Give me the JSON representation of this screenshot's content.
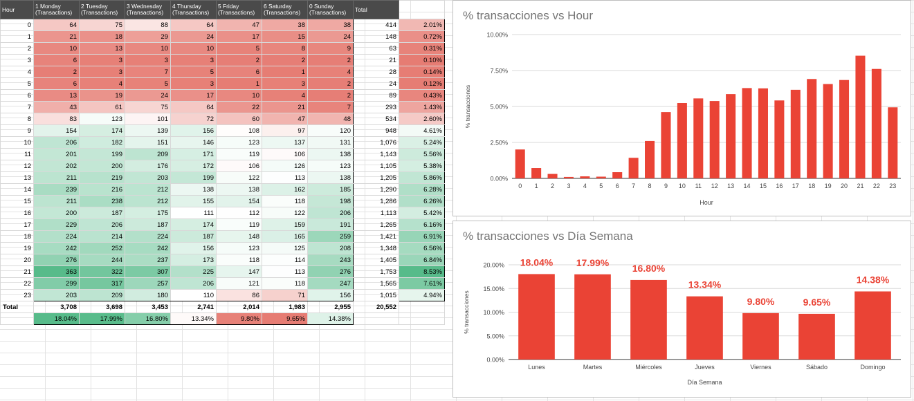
{
  "sheet": {
    "header": [
      "Hour",
      "1 Monday (Transactions)",
      "2 Tuesday (Transactions)",
      "3 Wednesday (Transactions)",
      "4 Thursday (Transactions)",
      "5 Friday (Transactions)",
      "6 Saturday (Transactions)",
      "0 Sunday (Transactions)",
      "Total"
    ],
    "rows": [
      {
        "h": "0",
        "v": [
          "64",
          "75",
          "88",
          "64",
          "47",
          "38",
          "38"
        ],
        "t": "414",
        "p": "2.01%"
      },
      {
        "h": "1",
        "v": [
          "21",
          "18",
          "29",
          "24",
          "17",
          "15",
          "24"
        ],
        "t": "148",
        "p": "0.72%"
      },
      {
        "h": "2",
        "v": [
          "10",
          "13",
          "10",
          "10",
          "5",
          "8",
          "9"
        ],
        "t": "63",
        "p": "0.31%"
      },
      {
        "h": "3",
        "v": [
          "6",
          "3",
          "3",
          "3",
          "2",
          "2",
          "2"
        ],
        "t": "21",
        "p": "0.10%"
      },
      {
        "h": "4",
        "v": [
          "2",
          "3",
          "7",
          "5",
          "6",
          "1",
          "4"
        ],
        "t": "28",
        "p": "0.14%"
      },
      {
        "h": "5",
        "v": [
          "6",
          "4",
          "5",
          "3",
          "1",
          "3",
          "2"
        ],
        "t": "24",
        "p": "0.12%"
      },
      {
        "h": "6",
        "v": [
          "13",
          "19",
          "24",
          "17",
          "10",
          "4",
          "2"
        ],
        "t": "89",
        "p": "0.43%"
      },
      {
        "h": "7",
        "v": [
          "43",
          "61",
          "75",
          "64",
          "22",
          "21",
          "7"
        ],
        "t": "293",
        "p": "1.43%"
      },
      {
        "h": "8",
        "v": [
          "83",
          "123",
          "101",
          "72",
          "60",
          "47",
          "48"
        ],
        "t": "534",
        "p": "2.60%"
      },
      {
        "h": "9",
        "v": [
          "154",
          "174",
          "139",
          "156",
          "108",
          "97",
          "120"
        ],
        "t": "948",
        "p": "4.61%"
      },
      {
        "h": "10",
        "v": [
          "206",
          "182",
          "151",
          "146",
          "123",
          "137",
          "131"
        ],
        "t": "1,076",
        "p": "5.24%"
      },
      {
        "h": "11",
        "v": [
          "201",
          "199",
          "209",
          "171",
          "119",
          "106",
          "138"
        ],
        "t": "1,143",
        "p": "5.56%"
      },
      {
        "h": "12",
        "v": [
          "202",
          "200",
          "176",
          "172",
          "106",
          "126",
          "123"
        ],
        "t": "1,105",
        "p": "5.38%"
      },
      {
        "h": "13",
        "v": [
          "211",
          "219",
          "203",
          "199",
          "122",
          "113",
          "138"
        ],
        "t": "1,205",
        "p": "5.86%"
      },
      {
        "h": "14",
        "v": [
          "239",
          "216",
          "212",
          "138",
          "138",
          "162",
          "185"
        ],
        "t": "1,290",
        "p": "6.28%"
      },
      {
        "h": "15",
        "v": [
          "211",
          "238",
          "212",
          "155",
          "154",
          "118",
          "198"
        ],
        "t": "1,286",
        "p": "6.26%"
      },
      {
        "h": "16",
        "v": [
          "200",
          "187",
          "175",
          "111",
          "112",
          "122",
          "206"
        ],
        "t": "1,113",
        "p": "5.42%"
      },
      {
        "h": "17",
        "v": [
          "229",
          "206",
          "187",
          "174",
          "119",
          "159",
          "191"
        ],
        "t": "1,265",
        "p": "6.16%"
      },
      {
        "h": "18",
        "v": [
          "224",
          "214",
          "224",
          "187",
          "148",
          "165",
          "259"
        ],
        "t": "1,421",
        "p": "6.91%"
      },
      {
        "h": "19",
        "v": [
          "242",
          "252",
          "242",
          "156",
          "123",
          "125",
          "208"
        ],
        "t": "1,348",
        "p": "6.56%"
      },
      {
        "h": "20",
        "v": [
          "276",
          "244",
          "237",
          "173",
          "118",
          "114",
          "243"
        ],
        "t": "1,405",
        "p": "6.84%"
      },
      {
        "h": "21",
        "v": [
          "363",
          "322",
          "307",
          "225",
          "147",
          "113",
          "276"
        ],
        "t": "1,753",
        "p": "8.53%"
      },
      {
        "h": "22",
        "v": [
          "299",
          "317",
          "257",
          "206",
          "121",
          "118",
          "247"
        ],
        "t": "1,565",
        "p": "7.61%"
      },
      {
        "h": "23",
        "v": [
          "203",
          "209",
          "180",
          "110",
          "86",
          "71",
          "156"
        ],
        "t": "1,015",
        "p": "4.94%"
      }
    ],
    "total_label": "Total",
    "totals": [
      "3,708",
      "3,698",
      "3,453",
      "2,741",
      "2,014",
      "1,983",
      "2,955",
      "20,552"
    ],
    "day_pct": [
      "18.04%",
      "17.99%",
      "16.80%",
      "13.34%",
      "9.80%",
      "9.65%",
      "14.38%"
    ]
  },
  "colors": {
    "red": "#e67c73",
    "green": "#57bb8a",
    "bar": "#ea4335",
    "header_bg": "#4a4a4a"
  },
  "chart_data": [
    {
      "type": "bar",
      "title": "% transacciones vs Hour",
      "xlabel": "Hour",
      "ylabel": "% transacciones",
      "categories": [
        "0",
        "1",
        "2",
        "3",
        "4",
        "5",
        "6",
        "7",
        "8",
        "9",
        "10",
        "11",
        "12",
        "13",
        "14",
        "15",
        "16",
        "17",
        "18",
        "19",
        "20",
        "21",
        "22",
        "23"
      ],
      "values": [
        2.01,
        0.72,
        0.31,
        0.1,
        0.14,
        0.12,
        0.43,
        1.43,
        2.6,
        4.61,
        5.24,
        5.56,
        5.38,
        5.86,
        6.28,
        6.26,
        5.42,
        6.16,
        6.91,
        6.56,
        6.84,
        8.53,
        7.61,
        4.94
      ],
      "yticks": [
        "0.00%",
        "2.50%",
        "5.00%",
        "7.50%",
        "10.00%"
      ],
      "ylim": [
        0,
        10
      ],
      "grid": true
    },
    {
      "type": "bar",
      "title": "% transacciones vs Día Semana",
      "xlabel": "Día Semana",
      "ylabel": "% transacciones",
      "categories": [
        "Lunes",
        "Martes",
        "Miércoles",
        "Jueves",
        "Viernes",
        "Sábado",
        "Domingo"
      ],
      "values": [
        18.04,
        17.99,
        16.8,
        13.34,
        9.8,
        9.65,
        14.38
      ],
      "data_labels": [
        "18.04%",
        "17.99%",
        "16.80%",
        "13.34%",
        "9.80%",
        "9.65%",
        "14.38%"
      ],
      "yticks": [
        "0.00%",
        "5.00%",
        "10.00%",
        "15.00%",
        "20.00%"
      ],
      "ylim": [
        0,
        20
      ],
      "grid": true
    }
  ]
}
